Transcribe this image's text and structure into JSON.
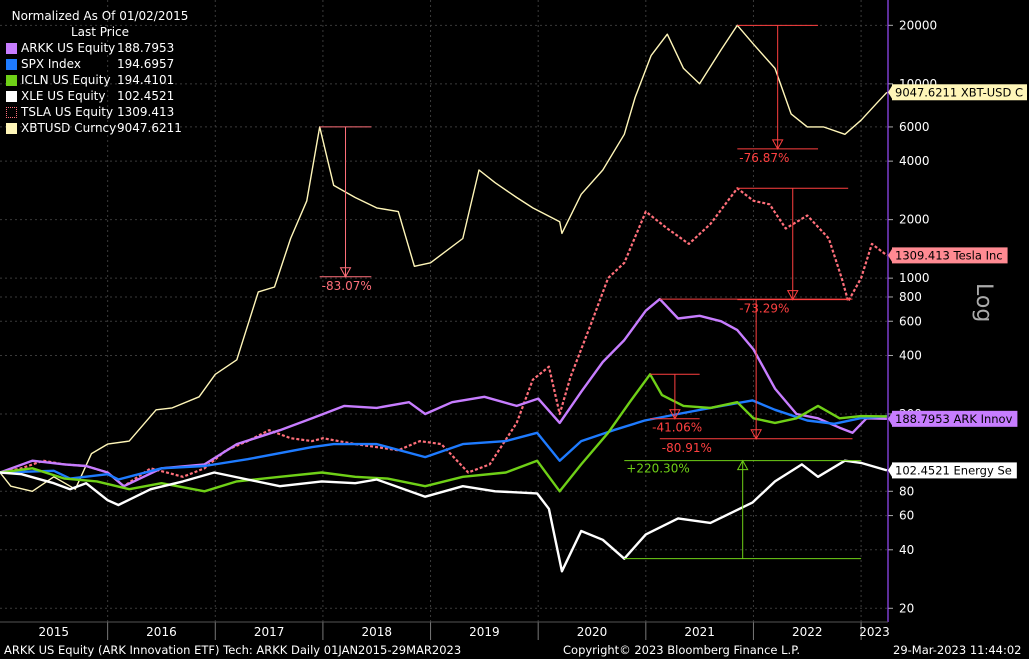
{
  "header": {
    "normalized": "Normalized As Of 01/02/2015",
    "field": "Last Price"
  },
  "legend": [
    {
      "name": "ARKK US Equity",
      "value": "188.7953",
      "color": "#c77dff"
    },
    {
      "name": "SPX Index",
      "value": "194.6957",
      "color": "#1e7bff"
    },
    {
      "name": "ICLN US Equity",
      "value": "194.4101",
      "color": "#6fd017"
    },
    {
      "name": "XLE US Equity",
      "value": "102.4521",
      "color": "#ffffff"
    },
    {
      "name": "TSLA US Equity",
      "value": "1309.413",
      "color": "#ff6f7a",
      "dashed": true
    },
    {
      "name": "XBTUSD Curncy",
      "value": "9047.6211",
      "color": "#fff6b8"
    }
  ],
  "footer": {
    "left": "ARKK US Equity (ARK Innovation ETF) Tech: ARKK  Daily 01JAN2015-29MAR2023",
    "center": "Copyright© 2023 Bloomberg Finance L.P.",
    "right": "29-Mar-2023 11:44:02"
  },
  "axis_title": "Log",
  "chart_data": {
    "type": "line",
    "yscale": "log",
    "ylim": [
      17,
      27000
    ],
    "xlim": [
      2015.0,
      2023.25
    ],
    "x_ticks": [
      "2015",
      "2016",
      "2017",
      "2018",
      "2019",
      "2020",
      "2021",
      "2022",
      "2023"
    ],
    "y_ticks": [
      20,
      40,
      60,
      80,
      200,
      400,
      600,
      800,
      1000,
      2000,
      4000,
      6000,
      10000,
      20000
    ],
    "grid": true,
    "legend_position": "top-left",
    "series": [
      {
        "name": "XBTUSD Curncy",
        "color": "#fff6b8",
        "last_label": "9047.6211 XBT-USD C",
        "points": [
          [
            2015.0,
            100
          ],
          [
            2015.1,
            85
          ],
          [
            2015.3,
            80
          ],
          [
            2015.5,
            95
          ],
          [
            2015.7,
            82
          ],
          [
            2015.85,
            125
          ],
          [
            2016.0,
            140
          ],
          [
            2016.2,
            145
          ],
          [
            2016.45,
            210
          ],
          [
            2016.6,
            215
          ],
          [
            2016.85,
            245
          ],
          [
            2017.0,
            320
          ],
          [
            2017.2,
            380
          ],
          [
            2017.4,
            850
          ],
          [
            2017.55,
            900
          ],
          [
            2017.7,
            1600
          ],
          [
            2017.85,
            2500
          ],
          [
            2017.97,
            6000
          ],
          [
            2018.1,
            3000
          ],
          [
            2018.3,
            2600
          ],
          [
            2018.5,
            2300
          ],
          [
            2018.7,
            2200
          ],
          [
            2018.85,
            1150
          ],
          [
            2019.0,
            1200
          ],
          [
            2019.3,
            1600
          ],
          [
            2019.45,
            3600
          ],
          [
            2019.6,
            3100
          ],
          [
            2019.8,
            2600
          ],
          [
            2019.95,
            2300
          ],
          [
            2020.2,
            1950
          ],
          [
            2020.22,
            1700
          ],
          [
            2020.4,
            2700
          ],
          [
            2020.6,
            3600
          ],
          [
            2020.8,
            5500
          ],
          [
            2020.9,
            8500
          ],
          [
            2021.05,
            14000
          ],
          [
            2021.2,
            18000
          ],
          [
            2021.35,
            12000
          ],
          [
            2021.5,
            10000
          ],
          [
            2021.7,
            15000
          ],
          [
            2021.85,
            20000
          ],
          [
            2022.0,
            16000
          ],
          [
            2022.2,
            12000
          ],
          [
            2022.35,
            7000
          ],
          [
            2022.5,
            6000
          ],
          [
            2022.65,
            6000
          ],
          [
            2022.85,
            5500
          ],
          [
            2023.0,
            6500
          ],
          [
            2023.15,
            8000
          ],
          [
            2023.24,
            9047.6211
          ]
        ]
      },
      {
        "name": "TSLA US Equity",
        "color": "#ff6f7a",
        "dashed": true,
        "last_label": "1309.413 Tesla Inc",
        "points": [
          [
            2015.0,
            100
          ],
          [
            2015.2,
            105
          ],
          [
            2015.4,
            115
          ],
          [
            2015.6,
            110
          ],
          [
            2015.8,
            108
          ],
          [
            2016.0,
            100
          ],
          [
            2016.15,
            85
          ],
          [
            2016.4,
            105
          ],
          [
            2016.7,
            95
          ],
          [
            2016.9,
            105
          ],
          [
            2017.1,
            130
          ],
          [
            2017.3,
            145
          ],
          [
            2017.5,
            165
          ],
          [
            2017.7,
            150
          ],
          [
            2017.9,
            145
          ],
          [
            2018.0,
            150
          ],
          [
            2018.3,
            140
          ],
          [
            2018.5,
            135
          ],
          [
            2018.7,
            130
          ],
          [
            2018.9,
            145
          ],
          [
            2019.1,
            140
          ],
          [
            2019.35,
            100
          ],
          [
            2019.55,
            110
          ],
          [
            2019.8,
            180
          ],
          [
            2019.95,
            300
          ],
          [
            2020.1,
            350
          ],
          [
            2020.2,
            200
          ],
          [
            2020.3,
            310
          ],
          [
            2020.5,
            600
          ],
          [
            2020.65,
            1000
          ],
          [
            2020.8,
            1200
          ],
          [
            2021.0,
            2200
          ],
          [
            2021.2,
            1800
          ],
          [
            2021.4,
            1500
          ],
          [
            2021.6,
            1900
          ],
          [
            2021.85,
            2900
          ],
          [
            2022.0,
            2500
          ],
          [
            2022.15,
            2400
          ],
          [
            2022.3,
            1800
          ],
          [
            2022.5,
            2100
          ],
          [
            2022.7,
            1600
          ],
          [
            2022.82,
            1000
          ],
          [
            2022.88,
            760
          ],
          [
            2023.0,
            1000
          ],
          [
            2023.1,
            1500
          ],
          [
            2023.24,
            1309.413
          ]
        ]
      },
      {
        "name": "ARKK US Equity",
        "color": "#c77dff",
        "last_label": "188.7953 ARK Innov",
        "points": [
          [
            2015.0,
            100
          ],
          [
            2015.3,
            115
          ],
          [
            2015.6,
            110
          ],
          [
            2015.8,
            108
          ],
          [
            2016.0,
            100
          ],
          [
            2016.15,
            85
          ],
          [
            2016.5,
            105
          ],
          [
            2016.9,
            110
          ],
          [
            2017.2,
            140
          ],
          [
            2017.6,
            165
          ],
          [
            2017.9,
            190
          ],
          [
            2018.2,
            220
          ],
          [
            2018.5,
            215
          ],
          [
            2018.8,
            230
          ],
          [
            2018.95,
            200
          ],
          [
            2019.2,
            230
          ],
          [
            2019.5,
            245
          ],
          [
            2019.8,
            220
          ],
          [
            2020.0,
            240
          ],
          [
            2020.2,
            180
          ],
          [
            2020.4,
            260
          ],
          [
            2020.6,
            370
          ],
          [
            2020.8,
            480
          ],
          [
            2021.0,
            680
          ],
          [
            2021.13,
            780
          ],
          [
            2021.3,
            620
          ],
          [
            2021.5,
            640
          ],
          [
            2021.7,
            600
          ],
          [
            2021.85,
            540
          ],
          [
            2022.0,
            430
          ],
          [
            2022.2,
            270
          ],
          [
            2022.4,
            200
          ],
          [
            2022.6,
            190
          ],
          [
            2022.8,
            170
          ],
          [
            2022.92,
            160
          ],
          [
            2023.05,
            190
          ],
          [
            2023.24,
            188.7953
          ]
        ]
      },
      {
        "name": "SPX Index",
        "color": "#1e7bff",
        "last_label": "",
        "points": [
          [
            2015.0,
            100
          ],
          [
            2015.5,
            102
          ],
          [
            2015.65,
            93
          ],
          [
            2016.0,
            98
          ],
          [
            2016.1,
            92
          ],
          [
            2016.5,
            105
          ],
          [
            2016.9,
            108
          ],
          [
            2017.3,
            117
          ],
          [
            2017.9,
            135
          ],
          [
            2018.1,
            140
          ],
          [
            2018.5,
            140
          ],
          [
            2018.95,
            120
          ],
          [
            2019.3,
            140
          ],
          [
            2019.7,
            145
          ],
          [
            2019.99,
            160
          ],
          [
            2020.2,
            115
          ],
          [
            2020.4,
            145
          ],
          [
            2020.7,
            165
          ],
          [
            2020.99,
            185
          ],
          [
            2021.3,
            200
          ],
          [
            2021.6,
            215
          ],
          [
            2021.99,
            235
          ],
          [
            2022.2,
            210
          ],
          [
            2022.5,
            185
          ],
          [
            2022.75,
            178
          ],
          [
            2022.99,
            190
          ],
          [
            2023.24,
            194.6957
          ]
        ]
      },
      {
        "name": "ICLN US Equity",
        "color": "#6fd017",
        "last_label": "",
        "points": [
          [
            2015.0,
            100
          ],
          [
            2015.3,
            105
          ],
          [
            2015.6,
            93
          ],
          [
            2015.9,
            90
          ],
          [
            2016.2,
            82
          ],
          [
            2016.5,
            88
          ],
          [
            2016.9,
            80
          ],
          [
            2017.2,
            90
          ],
          [
            2017.6,
            95
          ],
          [
            2017.99,
            100
          ],
          [
            2018.3,
            95
          ],
          [
            2018.6,
            93
          ],
          [
            2018.95,
            85
          ],
          [
            2019.3,
            95
          ],
          [
            2019.7,
            100
          ],
          [
            2019.99,
            115
          ],
          [
            2020.2,
            80
          ],
          [
            2020.4,
            110
          ],
          [
            2020.65,
            160
          ],
          [
            2020.85,
            230
          ],
          [
            2021.04,
            320
          ],
          [
            2021.15,
            250
          ],
          [
            2021.35,
            220
          ],
          [
            2021.6,
            215
          ],
          [
            2021.85,
            230
          ],
          [
            2022.0,
            190
          ],
          [
            2022.2,
            180
          ],
          [
            2022.4,
            190
          ],
          [
            2022.6,
            220
          ],
          [
            2022.8,
            190
          ],
          [
            2023.0,
            195
          ],
          [
            2023.24,
            194.4101
          ]
        ]
      },
      {
        "name": "XLE US Equity",
        "color": "#ffffff",
        "last_label": "102.4521 Energy Se",
        "points": [
          [
            2015.0,
            100
          ],
          [
            2015.2,
            98
          ],
          [
            2015.5,
            88
          ],
          [
            2015.65,
            82
          ],
          [
            2015.8,
            88
          ],
          [
            2016.0,
            72
          ],
          [
            2016.1,
            68
          ],
          [
            2016.4,
            82
          ],
          [
            2016.7,
            90
          ],
          [
            2016.99,
            100
          ],
          [
            2017.3,
            92
          ],
          [
            2017.6,
            85
          ],
          [
            2017.99,
            90
          ],
          [
            2018.3,
            88
          ],
          [
            2018.5,
            92
          ],
          [
            2018.95,
            75
          ],
          [
            2019.3,
            85
          ],
          [
            2019.6,
            80
          ],
          [
            2019.99,
            78
          ],
          [
            2020.1,
            65
          ],
          [
            2020.22,
            31
          ],
          [
            2020.4,
            50
          ],
          [
            2020.6,
            45
          ],
          [
            2020.8,
            36
          ],
          [
            2021.0,
            48
          ],
          [
            2021.3,
            58
          ],
          [
            2021.6,
            55
          ],
          [
            2021.99,
            70
          ],
          [
            2022.2,
            90
          ],
          [
            2022.45,
            110
          ],
          [
            2022.6,
            95
          ],
          [
            2022.85,
            115
          ],
          [
            2023.0,
            112
          ],
          [
            2023.24,
            102.4521
          ]
        ]
      }
    ],
    "annotations": [
      {
        "text": "-83.07%",
        "color": "#ff6f7a",
        "x1": 2017.97,
        "x2": 2018.45,
        "y_top": 6000,
        "y_bottom": 1016
      },
      {
        "text": "-76.87%",
        "color": "#ff4040",
        "x1": 2021.85,
        "x2": 2022.6,
        "y_top": 20000,
        "y_bottom": 4626
      },
      {
        "text": "-73.29%",
        "color": "#ff4040",
        "x1": 2021.85,
        "x2": 2022.88,
        "y_top": 2900,
        "y_bottom": 775
      },
      {
        "text": "-41.06%",
        "color": "#ff4040",
        "x1": 2021.04,
        "x2": 2021.5,
        "y_top": 320,
        "y_bottom": 189
      },
      {
        "text": "-80.91%",
        "color": "#ff4040",
        "x1": 2021.13,
        "x2": 2022.92,
        "y_top": 780,
        "y_bottom": 149
      },
      {
        "text": "+220.30%",
        "color": "#6fd017",
        "x1": 2020.8,
        "x2": 2023.0,
        "y_top": 115,
        "y_bottom": 36,
        "up": true
      }
    ]
  }
}
